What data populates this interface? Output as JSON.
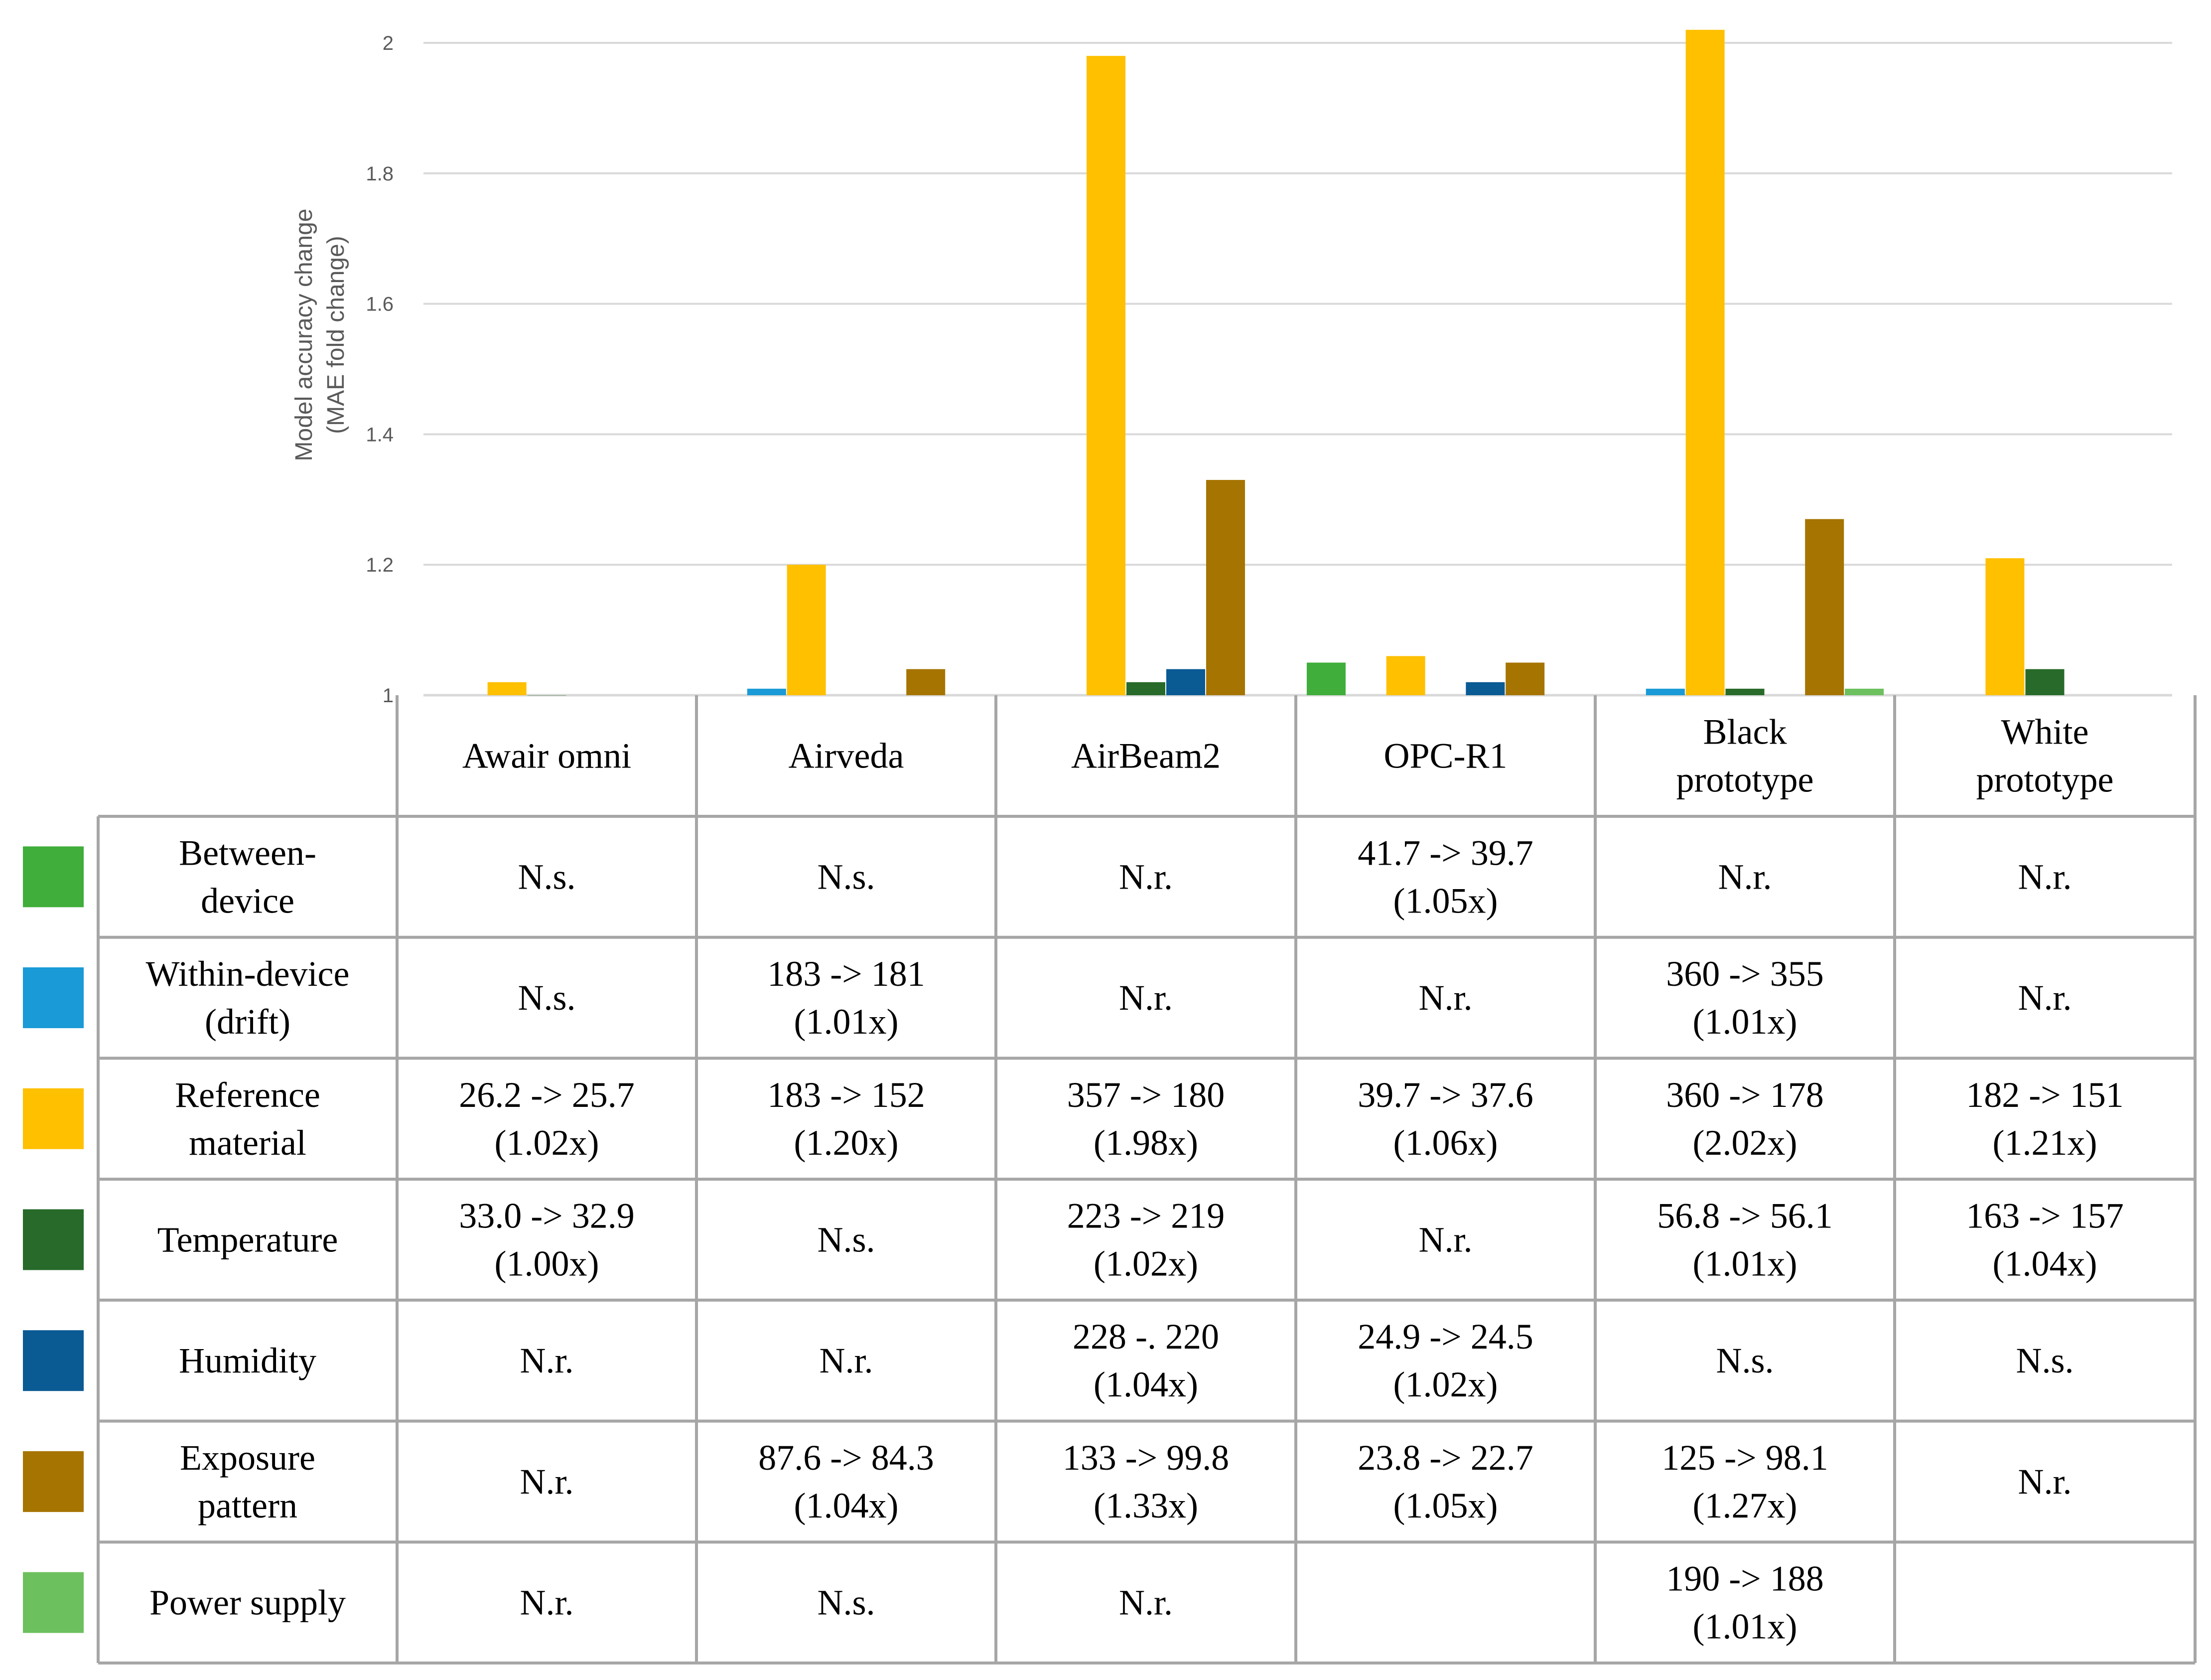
{
  "chart_data": {
    "type": "bar",
    "ylabel": "Model accuracy change",
    "ylabel_line2": "(MAE fold change)",
    "ylim": [
      1,
      2
    ],
    "yticks": [
      1,
      1.2,
      1.4,
      1.6,
      1.8,
      2
    ],
    "ytick_labels": [
      "1",
      "1.2",
      "1.4",
      "1.6",
      "1.8",
      "2"
    ],
    "grid": true,
    "categories": [
      "Awair omni",
      "Airveda",
      "AirBeam2",
      "OPC-R1",
      "Black prototype",
      "White prototype"
    ],
    "category_labels": [
      [
        "Awair omni"
      ],
      [
        "Airveda"
      ],
      [
        "AirBeam2"
      ],
      [
        "OPC-R1"
      ],
      [
        "Black",
        "prototype"
      ],
      [
        "White",
        "prototype"
      ]
    ],
    "series": [
      {
        "name": "Between-device",
        "label_lines": [
          "Between-",
          "device"
        ],
        "color": "#3fae3a",
        "values": [
          null,
          null,
          null,
          1.05,
          null,
          null
        ],
        "cells": [
          [
            "N.s."
          ],
          [
            "N.s."
          ],
          [
            "N.r."
          ],
          [
            "41.7 -> 39.7",
            "(1.05x)"
          ],
          [
            "N.r."
          ],
          [
            "N.r."
          ]
        ]
      },
      {
        "name": "Within-device (drift)",
        "label_lines": [
          "Within-device",
          "(drift)"
        ],
        "color": "#1a9ad6",
        "values": [
          null,
          1.01,
          null,
          null,
          1.01,
          null
        ],
        "cells": [
          [
            "N.s."
          ],
          [
            "183 -> 181",
            "(1.01x)"
          ],
          [
            "N.r."
          ],
          [
            "N.r."
          ],
          [
            "360 -> 355",
            "(1.01x)"
          ],
          [
            "N.r."
          ]
        ]
      },
      {
        "name": "Reference material",
        "label_lines": [
          "Reference",
          "material"
        ],
        "color": "#ffc000",
        "values": [
          1.02,
          1.2,
          1.98,
          1.06,
          2.02,
          1.21
        ],
        "cells": [
          [
            "26.2 -> 25.7",
            "(1.02x)"
          ],
          [
            "183 -> 152",
            "(1.20x)"
          ],
          [
            "357 -> 180",
            "(1.98x)"
          ],
          [
            "39.7 -> 37.6",
            "(1.06x)"
          ],
          [
            "360 -> 178",
            "(2.02x)"
          ],
          [
            "182 -> 151",
            "(1.21x)"
          ]
        ]
      },
      {
        "name": "Temperature",
        "label_lines": [
          "Temperature"
        ],
        "color": "#276a2a",
        "values": [
          1.0,
          null,
          1.02,
          null,
          1.01,
          1.04
        ],
        "cells": [
          [
            "33.0 -> 32.9",
            "(1.00x)"
          ],
          [
            "N.s."
          ],
          [
            "223 -> 219",
            "(1.02x)"
          ],
          [
            "N.r."
          ],
          [
            "56.8 -> 56.1",
            "(1.01x)"
          ],
          [
            "163 -> 157",
            "(1.04x)"
          ]
        ]
      },
      {
        "name": "Humidity",
        "label_lines": [
          "Humidity"
        ],
        "color": "#0a5a94",
        "values": [
          null,
          null,
          1.04,
          1.02,
          null,
          null
        ],
        "cells": [
          [
            "N.r."
          ],
          [
            "N.r."
          ],
          [
            "228 -. 220",
            "(1.04x)"
          ],
          [
            "24.9 -> 24.5",
            "(1.02x)"
          ],
          [
            "N.s."
          ],
          [
            "N.s."
          ]
        ]
      },
      {
        "name": "Exposure pattern",
        "label_lines": [
          "Exposure",
          "pattern"
        ],
        "color": "#a67400",
        "values": [
          null,
          1.04,
          1.33,
          1.05,
          1.27,
          null
        ],
        "cells": [
          [
            "N.r."
          ],
          [
            "87.6 -> 84.3",
            "(1.04x)"
          ],
          [
            "133 -> 99.8",
            "(1.33x)"
          ],
          [
            "23.8 -> 22.7",
            "(1.05x)"
          ],
          [
            "125 -> 98.1",
            "(1.27x)"
          ],
          [
            "N.r."
          ]
        ]
      },
      {
        "name": "Power supply",
        "label_lines": [
          "Power supply"
        ],
        "color": "#6cc05e",
        "values": [
          null,
          null,
          null,
          null,
          1.01,
          null
        ],
        "cells": [
          [
            "N.r."
          ],
          [
            "N.s."
          ],
          [
            "N.r."
          ],
          [],
          [
            "190 -> 188",
            "(1.01x)"
          ],
          []
        ]
      }
    ]
  }
}
